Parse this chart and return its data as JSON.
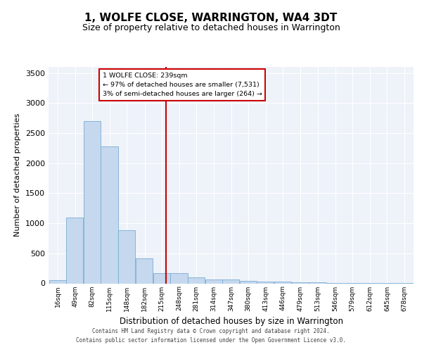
{
  "title": "1, WOLFE CLOSE, WARRINGTON, WA4 3DT",
  "subtitle": "Size of property relative to detached houses in Warrington",
  "xlabel": "Distribution of detached houses by size in Warrington",
  "ylabel": "Number of detached properties",
  "property_size": 239,
  "annotation_line1": "1 WOLFE CLOSE: 239sqm",
  "annotation_line2": "← 97% of detached houses are smaller (7,531)",
  "annotation_line3": "3% of semi-detached houses are larger (264) →",
  "footer_line1": "Contains HM Land Registry data © Crown copyright and database right 2024.",
  "footer_line2": "Contains public sector information licensed under the Open Government Licence v3.0.",
  "bar_color": "#c5d8ee",
  "bar_edge_color": "#7aacd4",
  "categories": [
    "16sqm",
    "49sqm",
    "82sqm",
    "115sqm",
    "148sqm",
    "182sqm",
    "215sqm",
    "248sqm",
    "281sqm",
    "314sqm",
    "347sqm",
    "380sqm",
    "413sqm",
    "446sqm",
    "479sqm",
    "513sqm",
    "546sqm",
    "579sqm",
    "612sqm",
    "645sqm",
    "678sqm"
  ],
  "bin_starts": [
    16,
    49,
    82,
    115,
    148,
    182,
    215,
    248,
    281,
    314,
    347,
    380,
    413,
    446,
    479,
    513,
    546,
    579,
    612,
    645,
    678
  ],
  "bin_width": 33,
  "values": [
    50,
    1100,
    2700,
    2280,
    880,
    420,
    175,
    175,
    100,
    70,
    60,
    45,
    35,
    25,
    20,
    15,
    10,
    8,
    5,
    5,
    3
  ],
  "ylim": [
    0,
    3600
  ],
  "yticks": [
    0,
    500,
    1000,
    1500,
    2000,
    2500,
    3000,
    3500
  ],
  "fig_bg": "#ffffff",
  "plot_bg": "#eef2f9",
  "grid_color": "#ffffff",
  "title_fontsize": 11,
  "subtitle_fontsize": 9,
  "annotation_box_color": "#cc0000",
  "vline_x": 239,
  "vline_color": "#cc0000"
}
